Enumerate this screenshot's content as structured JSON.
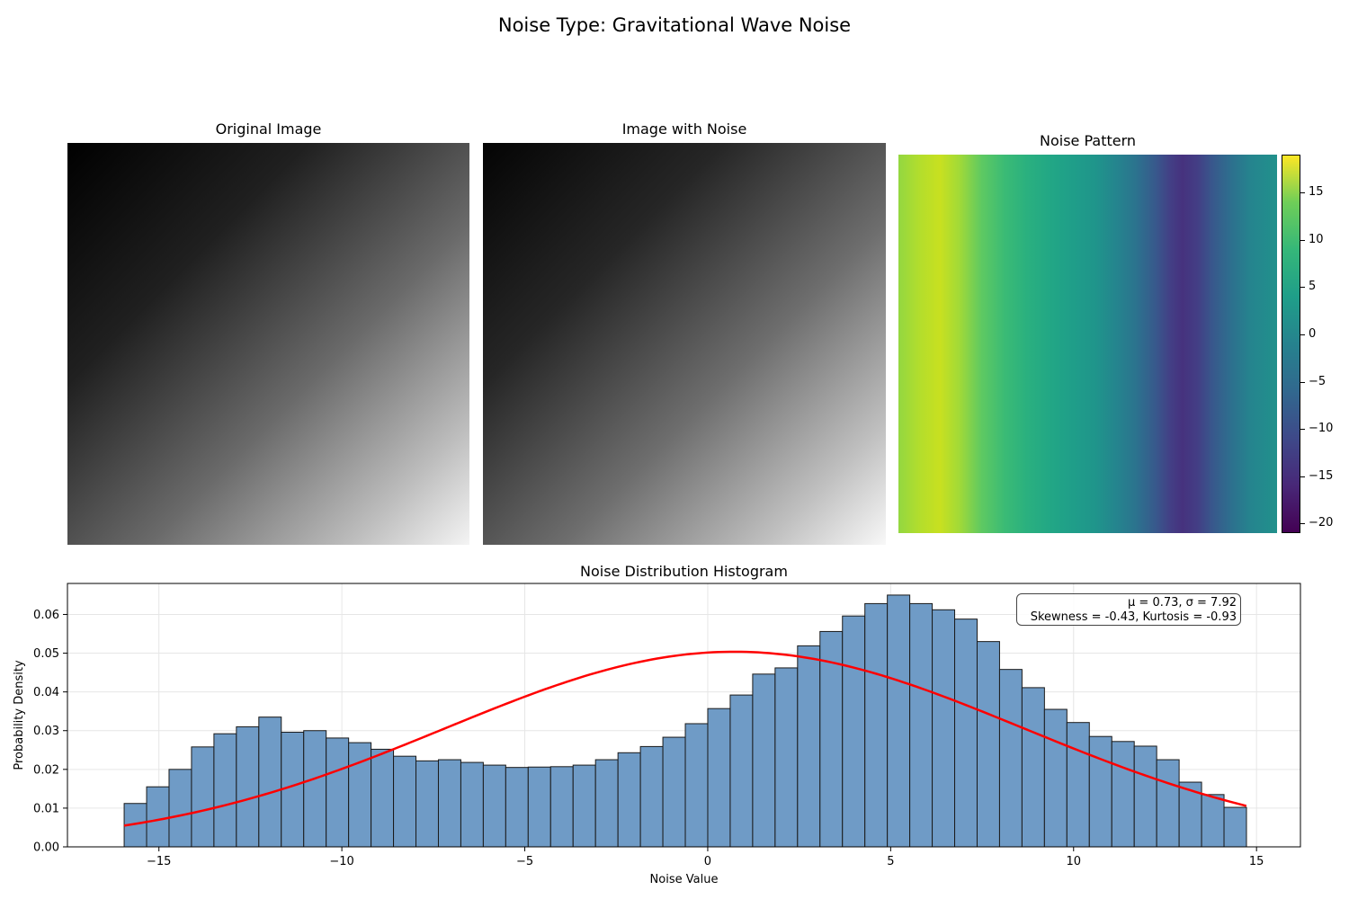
{
  "figure": {
    "suptitle": "Noise Type: Gravitational Wave Noise",
    "panels": {
      "original_title": "Original Image",
      "noisy_title": "Image with Noise",
      "noise_title": "Noise Pattern"
    },
    "colorbar": {
      "ticks": [
        15,
        10,
        5,
        0,
        -5,
        -10,
        -15,
        -20
      ],
      "tick_labels": [
        "15",
        "10",
        "5",
        "0",
        "−5",
        "−10",
        "−15",
        "−20"
      ],
      "range": [
        -21,
        19
      ],
      "colormap": "viridis"
    },
    "stats": {
      "line1": "μ = 0.73, σ = 7.92",
      "line2": "Skewness = -0.43, Kurtosis = -0.93"
    }
  },
  "chart_data": {
    "type": "bar",
    "title": "Noise Distribution Histogram",
    "xlabel": "Noise Value",
    "ylabel": "Probability Density",
    "xlim": [
      -17.5,
      16.2
    ],
    "ylim": [
      0,
      0.068
    ],
    "xticks": [
      -15,
      -10,
      -5,
      0,
      5,
      10,
      15
    ],
    "xtick_labels": [
      "−15",
      "−10",
      "−5",
      "0",
      "5",
      "10",
      "15"
    ],
    "yticks": [
      0.0,
      0.01,
      0.02,
      0.03,
      0.04,
      0.05,
      0.06
    ],
    "ytick_labels": [
      "0.00",
      "0.01",
      "0.02",
      "0.03",
      "0.04",
      "0.05",
      "0.06"
    ],
    "grid": true,
    "bins": {
      "start": -15.95,
      "width": 0.6135,
      "values": [
        0.0112,
        0.0155,
        0.02,
        0.0258,
        0.0292,
        0.031,
        0.0335,
        0.0296,
        0.03,
        0.0281,
        0.0269,
        0.0252,
        0.0234,
        0.0222,
        0.0225,
        0.0218,
        0.0211,
        0.0205,
        0.0206,
        0.0207,
        0.0211,
        0.0225,
        0.0243,
        0.0259,
        0.0283,
        0.0318,
        0.0357,
        0.0392,
        0.0446,
        0.0462,
        0.0519,
        0.0556,
        0.0596,
        0.0628,
        0.065,
        0.0628,
        0.0612,
        0.0588,
        0.053,
        0.0458,
        0.0411,
        0.0355,
        0.0321,
        0.0285,
        0.0272,
        0.026,
        0.0225,
        0.0167,
        0.0135,
        0.0102
      ]
    },
    "bar_color": "#6f9bc6",
    "fit": {
      "type": "normal",
      "mu": 0.73,
      "sigma": 7.92,
      "x_range": [
        -15.95,
        14.72
      ],
      "color": "#ff0000"
    }
  }
}
